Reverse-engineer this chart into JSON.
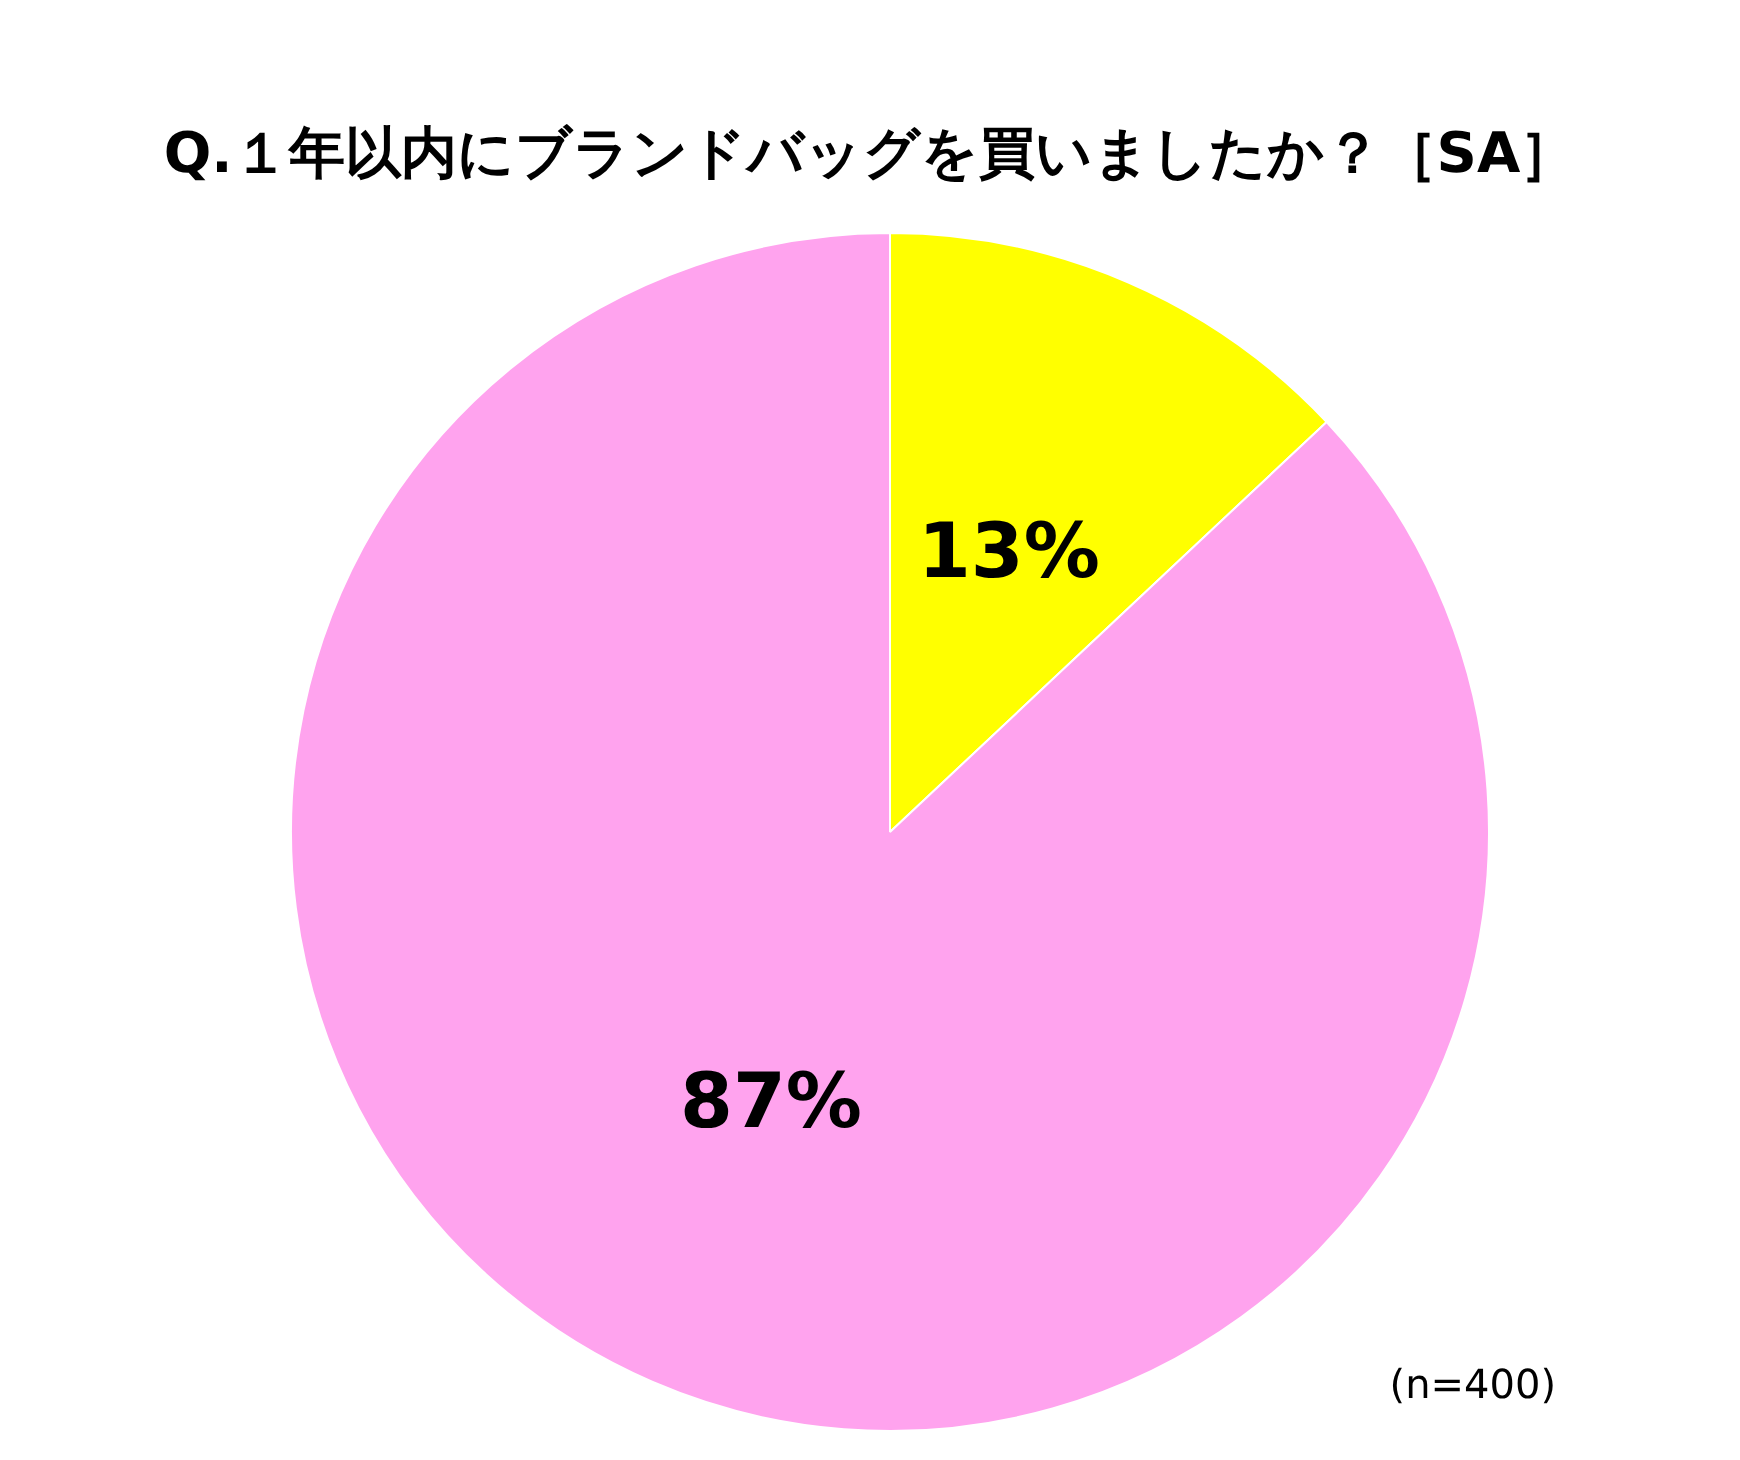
{
  "chart_data": {
    "type": "pie",
    "title": "Q.１年以内にブランドバッグを買いましたか？［SA］",
    "categories": [
      null,
      null
    ],
    "values": [
      13,
      87
    ],
    "colors": [
      "#ffff00",
      "#ffa3ee"
    ],
    "value_labels": [
      "13%",
      "87%"
    ],
    "annotations": [
      "(n=400)"
    ]
  }
}
